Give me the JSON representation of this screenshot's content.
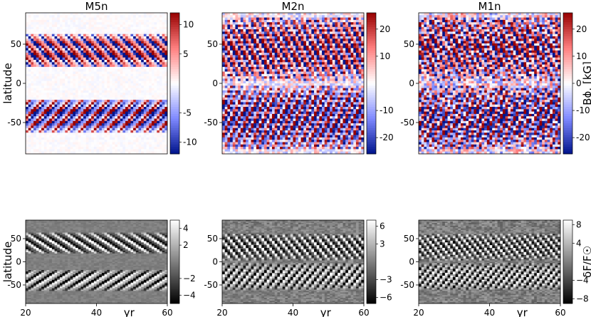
{
  "figure": {
    "ylabel": "latitude",
    "xlabel": "yr"
  },
  "panels": [
    {
      "title": "M5n",
      "row": 0,
      "col": 0
    },
    {
      "title": "M2n",
      "row": 0,
      "col": 1
    },
    {
      "title": "M1n",
      "row": 0,
      "col": 2
    },
    {
      "title": "",
      "row": 1,
      "col": 0
    },
    {
      "title": "",
      "row": 1,
      "col": 1
    },
    {
      "title": "",
      "row": 1,
      "col": 2
    }
  ],
  "colors": {
    "positive": "#b2182b",
    "negative": "#0a1a8c",
    "neutral": "#ffffff",
    "gray_low": "#000000",
    "gray_high": "#ffffff"
  },
  "chart_data": [
    {
      "type": "heatmap",
      "title": "M5n",
      "colormap": "seismic",
      "x_range": [
        20,
        60
      ],
      "y_range": [
        -90,
        90
      ],
      "x_ticks": [],
      "y_ticks": [
        -50,
        0,
        50
      ],
      "ylabel": "latitude",
      "colorbar": {
        "ticks": [
          10,
          5,
          -5,
          -10
        ],
        "tick_labels": [
          "10",
          "5",
          "-5",
          "-10"
        ],
        "range": [
          -12,
          12
        ],
        "label": ""
      },
      "pattern": {
        "lat_min": 20,
        "lat_max": 62,
        "period": 3.7,
        "slope": 5.0,
        "noise": 0.05
      }
    },
    {
      "type": "heatmap",
      "title": "M2n",
      "colormap": "seismic",
      "x_range": [
        20,
        60
      ],
      "y_range": [
        -90,
        90
      ],
      "x_ticks": [],
      "y_ticks": [
        -50,
        0,
        50
      ],
      "ylabel": "",
      "colorbar": {
        "ticks": [
          20,
          10,
          -10,
          -20
        ],
        "tick_labels": [
          "20",
          "10",
          "-10",
          "-20"
        ],
        "range": [
          -26,
          26
        ],
        "label": ""
      },
      "pattern": {
        "lat_min": 4,
        "lat_max": 85,
        "period": 2.3,
        "slope": 9.0,
        "noise": 0.35
      }
    },
    {
      "type": "heatmap",
      "title": "M1n",
      "colormap": "seismic",
      "x_range": [
        20,
        60
      ],
      "y_range": [
        -90,
        90
      ],
      "x_ticks": [],
      "y_ticks": [
        -50,
        0,
        50
      ],
      "ylabel": "",
      "colorbar": {
        "ticks": [
          20,
          10,
          0,
          -10,
          -20
        ],
        "tick_labels": [
          "20",
          "10",
          "0",
          "-10",
          "-20"
        ],
        "range": [
          -26,
          26
        ],
        "label": "Bϕ, [kG]"
      },
      "pattern": {
        "lat_min": 4,
        "lat_max": 85,
        "period": 2.0,
        "slope": 9.0,
        "noise": 0.6
      }
    },
    {
      "type": "heatmap",
      "title": "",
      "colormap": "gray",
      "x_range": [
        20,
        60
      ],
      "y_range": [
        -90,
        90
      ],
      "x_ticks": [
        20,
        40,
        60
      ],
      "y_ticks": [
        -50,
        0,
        50
      ],
      "xlabel": "yr",
      "ylabel": "latitude",
      "colorbar": {
        "ticks": [
          4,
          2,
          -2,
          -4
        ],
        "tick_labels": [
          "4",
          "2",
          "−2",
          "−4"
        ],
        "range": [
          -5,
          5
        ],
        "label": ""
      },
      "pattern": {
        "lat_min": 18,
        "lat_max": 62,
        "period": 3.7,
        "slope": 5.0,
        "noise": 0.1
      }
    },
    {
      "type": "heatmap",
      "title": "",
      "colormap": "gray",
      "x_range": [
        20,
        60
      ],
      "y_range": [
        -90,
        90
      ],
      "x_ticks": [
        20,
        40,
        60
      ],
      "y_ticks": [
        -50,
        0,
        50
      ],
      "xlabel": "yr",
      "ylabel": "",
      "colorbar": {
        "ticks": [
          6,
          3,
          -3,
          -6
        ],
        "tick_labels": [
          "6",
          "3",
          "−3",
          "−6"
        ],
        "range": [
          -7,
          7
        ],
        "label": ""
      },
      "pattern": {
        "lat_min": 4,
        "lat_max": 60,
        "period": 2.3,
        "slope": 9.0,
        "noise": 0.25
      }
    },
    {
      "type": "heatmap",
      "title": "",
      "colormap": "gray",
      "x_range": [
        20,
        60
      ],
      "y_range": [
        -90,
        90
      ],
      "x_ticks": [
        20,
        40,
        60
      ],
      "y_ticks": [
        -50,
        0,
        50
      ],
      "xlabel": "yr",
      "ylabel": "",
      "colorbar": {
        "ticks": [
          8,
          4,
          -4,
          -8
        ],
        "tick_labels": [
          "8",
          "4",
          "−4",
          "−8"
        ],
        "range": [
          -9,
          9
        ],
        "label": "δF/F☉"
      },
      "pattern": {
        "lat_min": 4,
        "lat_max": 60,
        "period": 2.0,
        "slope": 9.0,
        "noise": 0.3
      }
    }
  ]
}
